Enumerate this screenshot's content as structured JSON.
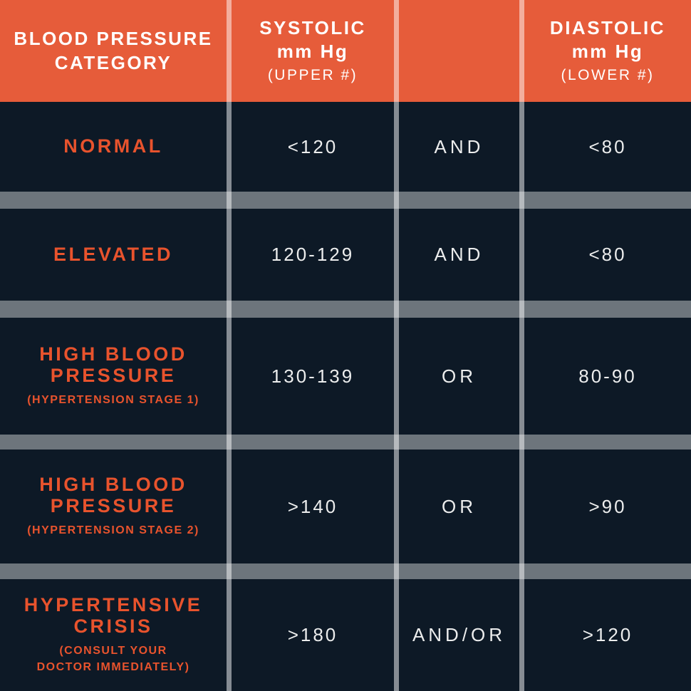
{
  "title": "Blood Pressure Category Table",
  "colors": {
    "header_bg": "#E65C3A",
    "category_text": "#E8532D",
    "background": "#0D1926",
    "value_text": "#ECEDED",
    "header_text": "#FFFFFF",
    "row_divider": "rgba(255,255,255,0.40)",
    "column_divider": "rgba(255,255,255,0.50)"
  },
  "header": {
    "category": {
      "line1": "BLOOD PRESSURE",
      "line2": "CATEGORY"
    },
    "systolic": {
      "line1": "SYSTOLIC",
      "line2": "mm Hg",
      "sub": "(UPPER #)"
    },
    "connector": {
      "line1": "",
      "line2": "",
      "sub": ""
    },
    "diastolic": {
      "line1": "DIASTOLIC",
      "line2": "mm Hg",
      "sub": "(LOWER #)"
    }
  },
  "rows": [
    {
      "category_line1": "NORMAL",
      "category_line2": "",
      "sub_line1": "",
      "sub_line2": "",
      "systolic": "<120",
      "connector": "AND",
      "diastolic": "<80"
    },
    {
      "category_line1": "ELEVATED",
      "category_line2": "",
      "sub_line1": "",
      "sub_line2": "",
      "systolic": "120-129",
      "connector": "AND",
      "diastolic": "<80"
    },
    {
      "category_line1": "HIGH BLOOD",
      "category_line2": "PRESSURE",
      "sub_line1": "(HYPERTENSION STAGE 1)",
      "sub_line2": "",
      "systolic": "130-139",
      "connector": "OR",
      "diastolic": "80-90"
    },
    {
      "category_line1": "HIGH BLOOD",
      "category_line2": "PRESSURE",
      "sub_line1": "(HYPERTENSION STAGE 2)",
      "sub_line2": "",
      "systolic": ">140",
      "connector": "OR",
      "diastolic": ">90"
    },
    {
      "category_line1": "HYPERTENSIVE",
      "category_line2": "CRISIS",
      "sub_line1": "(CONSULT YOUR",
      "sub_line2": "DOCTOR IMMEDIATELY)",
      "systolic": ">180",
      "connector": "AND/OR",
      "diastolic": ">120"
    }
  ],
  "chart_data": {
    "type": "table",
    "title": "Blood Pressure Categories",
    "columns": [
      "BLOOD PRESSURE CATEGORY",
      "SYSTOLIC mm Hg (UPPER #)",
      "",
      "DIASTOLIC mm Hg (LOWER #)"
    ],
    "rows": [
      [
        "NORMAL",
        "<120",
        "AND",
        "<80"
      ],
      [
        "ELEVATED",
        "120-129",
        "AND",
        "<80"
      ],
      [
        "HIGH BLOOD PRESSURE (HYPERTENSION STAGE 1)",
        "130-139",
        "OR",
        "80-90"
      ],
      [
        "HIGH BLOOD PRESSURE (HYPERTENSION STAGE 2)",
        ">140",
        "OR",
        ">90"
      ],
      [
        "HYPERTENSIVE CRISIS (CONSULT YOUR DOCTOR IMMEDIATELY)",
        ">180",
        "AND/OR",
        ">120"
      ]
    ]
  }
}
